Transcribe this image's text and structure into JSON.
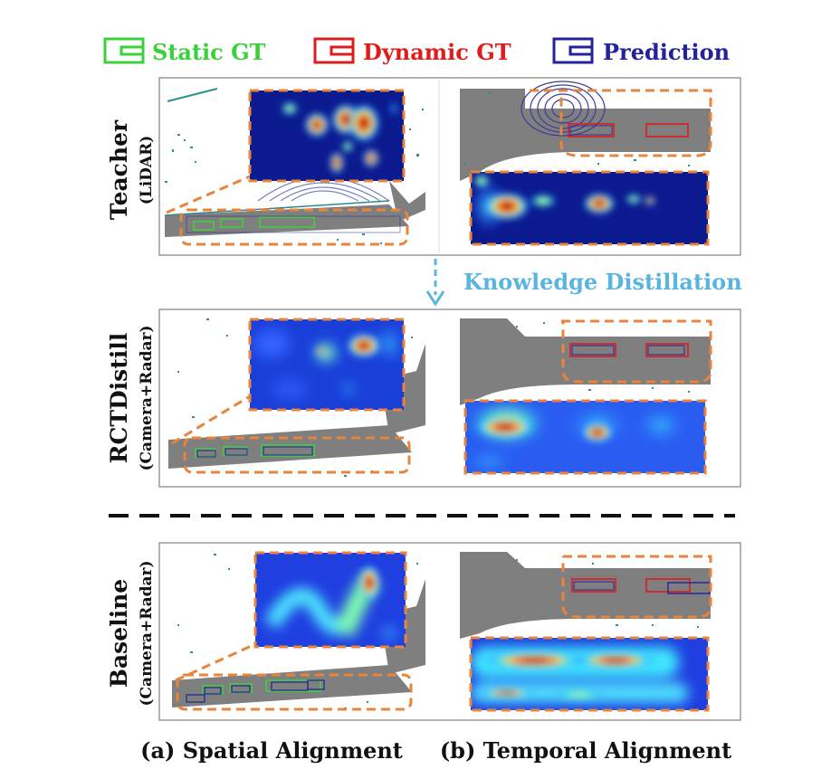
{
  "legend": {
    "static_gt": "Static GT",
    "dynamic_gt": "Dynamic GT",
    "prediction": "Prediction",
    "colors": {
      "static": "#3ccf3c",
      "dynamic": "#e01b1b",
      "prediction": "#22229a"
    }
  },
  "rows": [
    {
      "title": "Teacher",
      "subtitle": "(LiDAR)"
    },
    {
      "title": "RCTDistill",
      "subtitle": "(Camera+Radar)"
    },
    {
      "title": "Baseline",
      "subtitle": "(Camera+Radar)"
    }
  ],
  "kd_label": "Knowledge Distillation",
  "captions": {
    "spatial": "(a) Spatial Alignment",
    "temporal": "(b) Temporal Alignment"
  },
  "colors": {
    "road": "#7f7f7f",
    "zoom_outline": "#e8843c",
    "kd_arrow": "#5ab4e0",
    "frame": "#9a9a9a"
  }
}
